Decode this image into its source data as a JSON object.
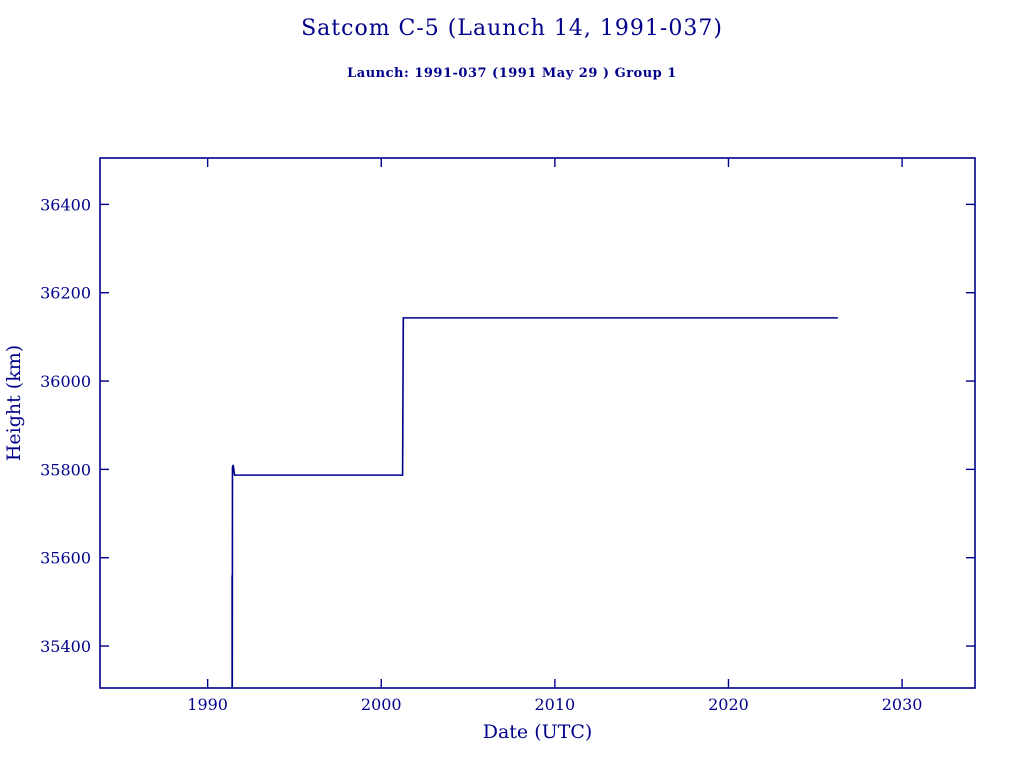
{
  "header": {
    "title": "Satcom C-5 (Launch 14, 1991-037)",
    "subtitle": "Launch: 1991-037  (1991 May 29 )  Group 1"
  },
  "chart_data": {
    "type": "line",
    "title": "Satcom C-5 (Launch 14, 1991-037)",
    "subtitle": "Launch: 1991-037  (1991 May 29 )  Group 1",
    "xlabel": "Date (UTC)",
    "ylabel": "Height (km)",
    "xlim": [
      1983.8,
      2034.2
    ],
    "ylim": [
      35305,
      36505
    ],
    "x_ticks": [
      1990,
      2000,
      2010,
      2020,
      2030
    ],
    "y_ticks": [
      35400,
      35600,
      35800,
      36000,
      36200,
      36400
    ],
    "grid": false,
    "legend": "none",
    "line_color": "#00008B",
    "series": [
      {
        "name": "height-km",
        "points": [
          [
            1991.41,
            35305
          ],
          [
            1991.41,
            35560
          ],
          [
            1991.42,
            35305
          ],
          [
            1991.43,
            35805
          ],
          [
            1991.47,
            35810
          ],
          [
            1991.55,
            35787
          ],
          [
            2001.23,
            35787
          ],
          [
            2001.27,
            36143
          ],
          [
            2026.3,
            36143
          ]
        ]
      }
    ]
  }
}
